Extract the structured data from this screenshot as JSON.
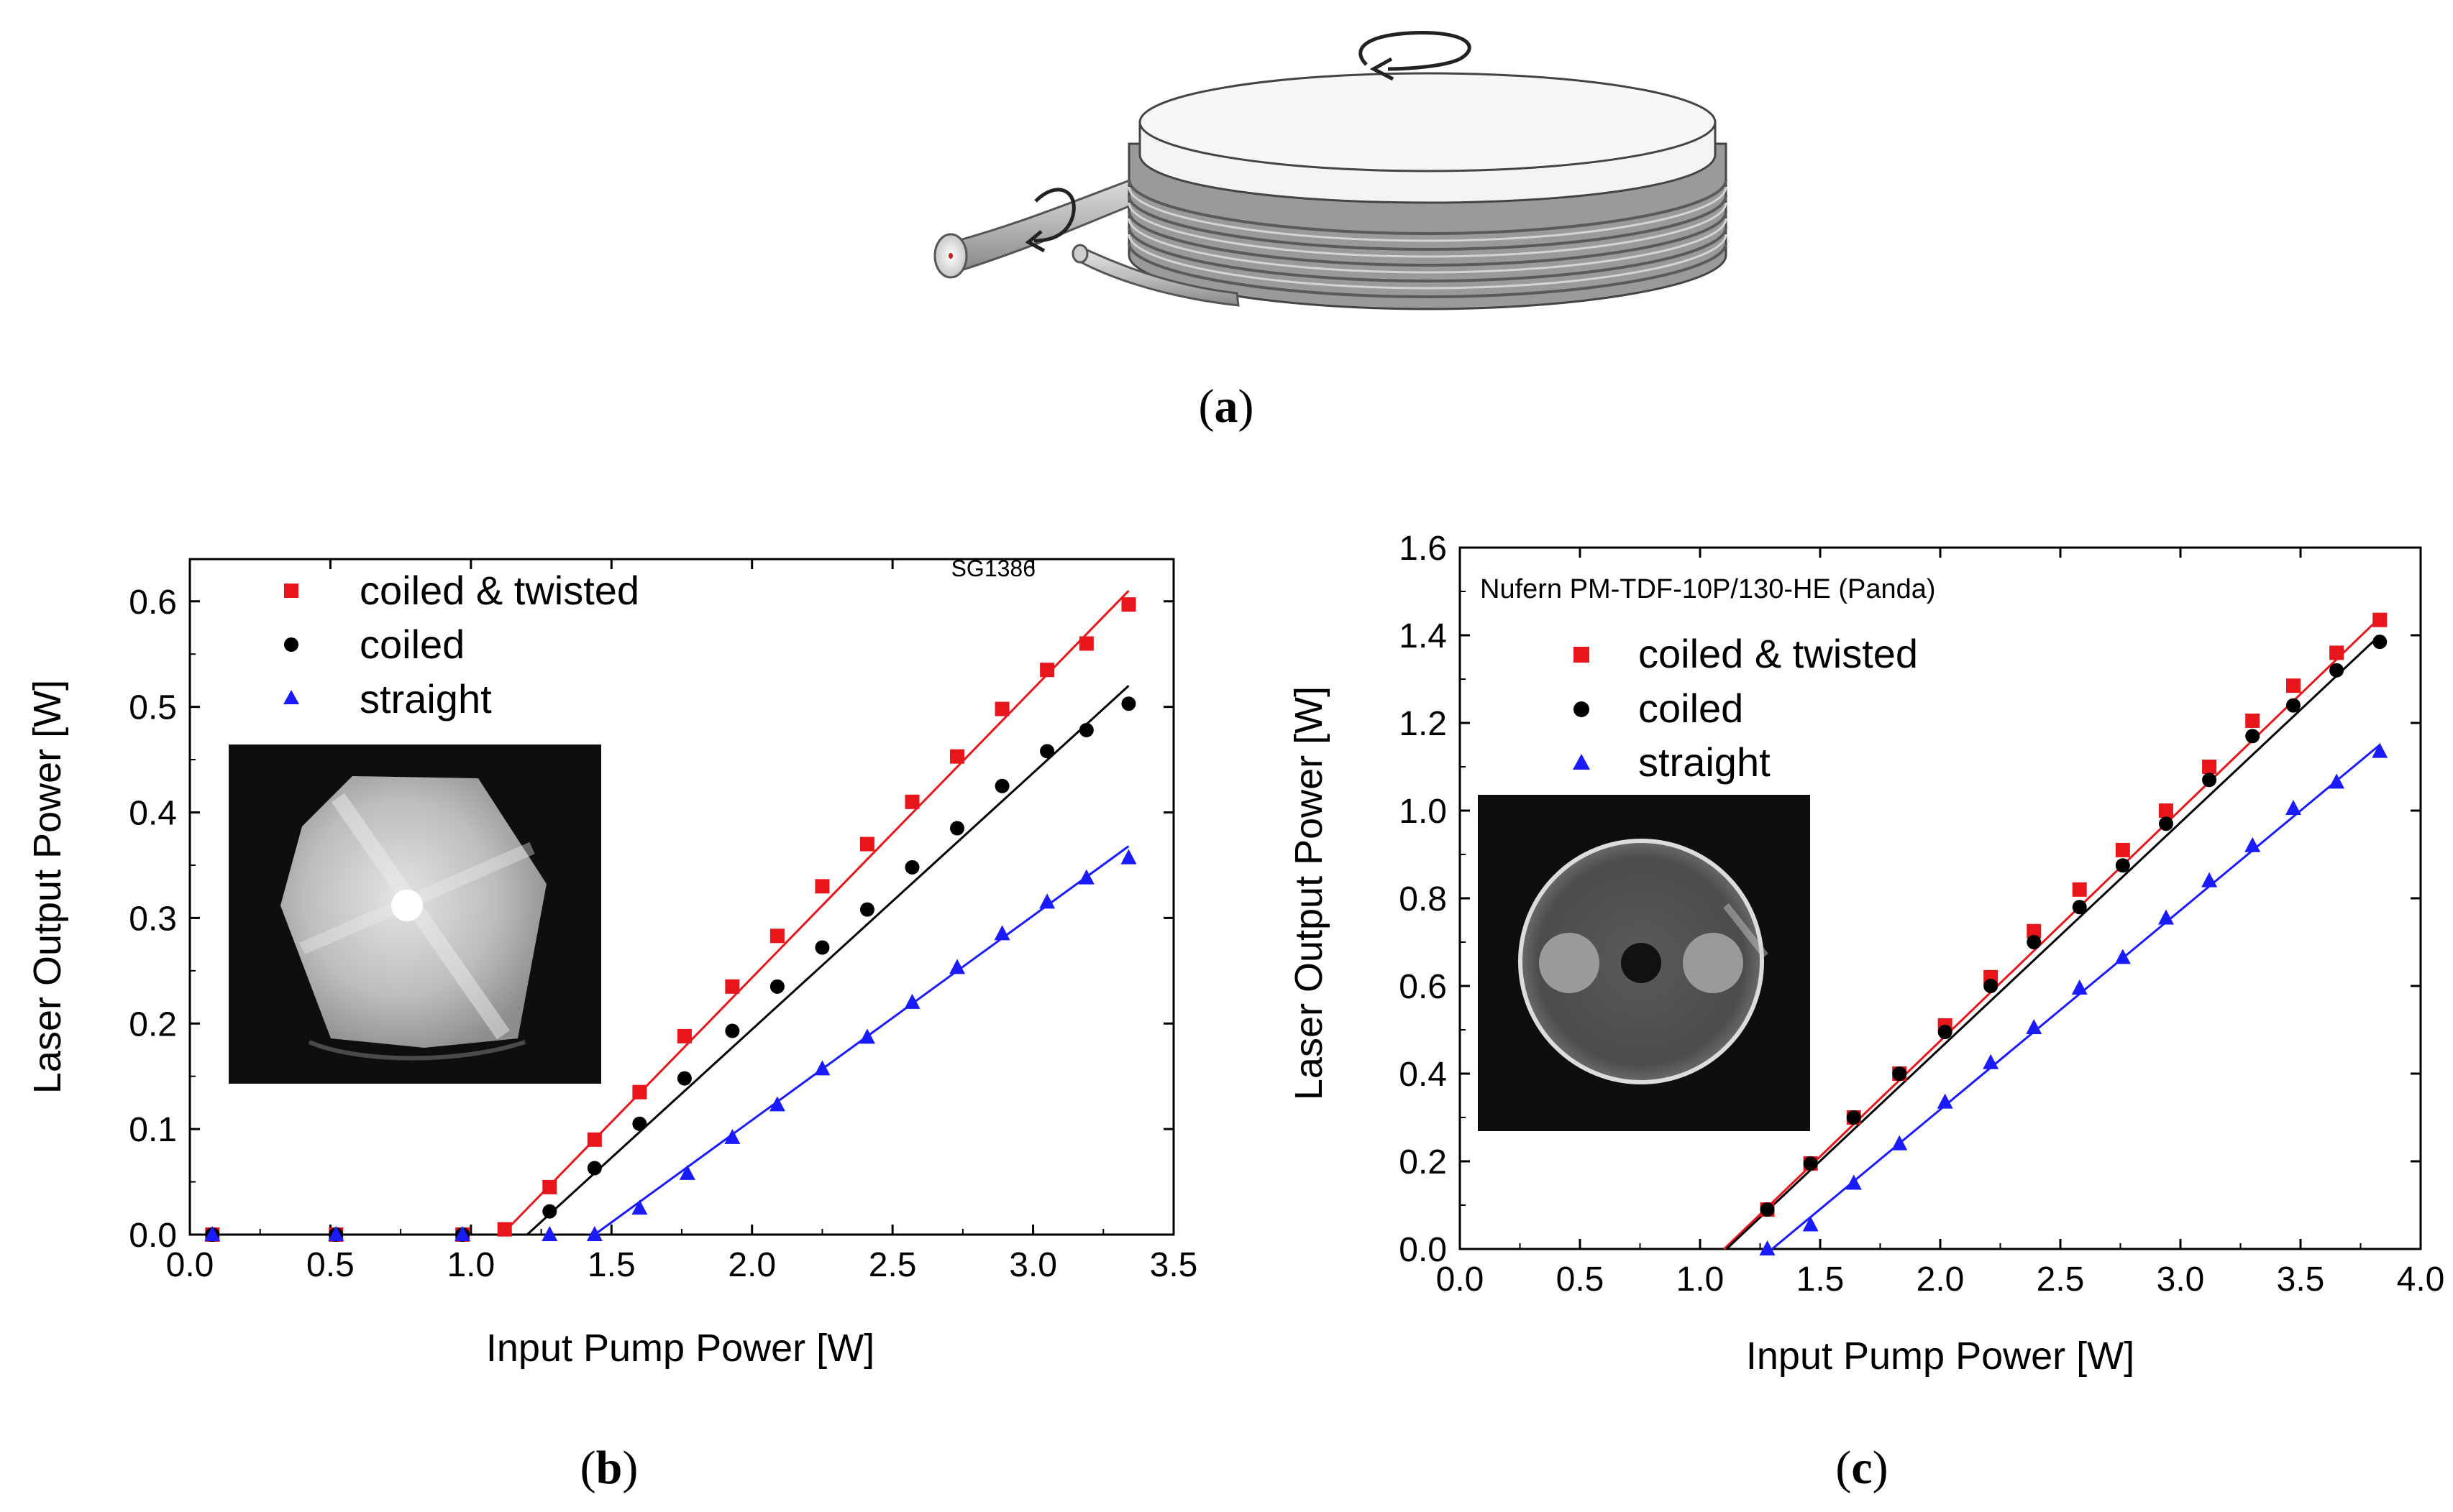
{
  "figure": {
    "panel_a_label": "a",
    "panel_b_label": "b",
    "panel_c_label": "c"
  },
  "colors": {
    "coiled_twisted": "#e8151b",
    "coiled": "#000000",
    "straight": "#1a1aff"
  },
  "chart_data": [
    {
      "id": "b",
      "type": "scatter",
      "title": "",
      "annotation": "SG1386",
      "xlabel": "Input Pump Power [W]",
      "ylabel": "Laser Output Power [W]",
      "xlim": [
        0.0,
        3.5
      ],
      "ylim": [
        0.0,
        0.64
      ],
      "xticks": [
        "0.0",
        "0.5",
        "1.0",
        "1.5",
        "2.0",
        "2.5",
        "3.0",
        "3.5"
      ],
      "yticks": [
        "0.0",
        "0.1",
        "0.2",
        "0.3",
        "0.4",
        "0.5",
        "0.6"
      ],
      "legend": [
        "coiled & twisted",
        "coiled",
        "straight"
      ],
      "series": [
        {
          "name": "coiled & twisted",
          "marker": "square",
          "x": [
            0.08,
            0.52,
            0.97,
            1.12,
            1.28,
            1.44,
            1.6,
            1.76,
            1.93,
            2.09,
            2.25,
            2.41,
            2.57,
            2.73,
            2.89,
            3.05,
            3.19,
            3.34
          ],
          "y": [
            0.0,
            0.0,
            0.0,
            0.005,
            0.045,
            0.09,
            0.135,
            0.188,
            0.235,
            0.283,
            0.33,
            0.37,
            0.41,
            0.453,
            0.498,
            0.535,
            0.56,
            0.597
          ],
          "fit": [
            [
              1.11,
              0.0
            ],
            [
              3.34,
              0.61
            ]
          ]
        },
        {
          "name": "coiled",
          "marker": "circle",
          "x": [
            0.08,
            0.52,
            0.97,
            1.28,
            1.44,
            1.6,
            1.76,
            1.93,
            2.09,
            2.25,
            2.41,
            2.57,
            2.73,
            2.89,
            3.05,
            3.19,
            3.34
          ],
          "y": [
            0.0,
            0.0,
            0.0,
            0.022,
            0.063,
            0.105,
            0.148,
            0.193,
            0.235,
            0.272,
            0.308,
            0.348,
            0.385,
            0.425,
            0.458,
            0.478,
            0.503
          ],
          "fit": [
            [
              1.2,
              0.0
            ],
            [
              3.34,
              0.52
            ]
          ]
        },
        {
          "name": "straight",
          "marker": "triangle",
          "x": [
            0.08,
            0.52,
            0.97,
            1.28,
            1.44,
            1.6,
            1.77,
            1.93,
            2.09,
            2.25,
            2.41,
            2.57,
            2.73,
            2.89,
            3.05,
            3.19,
            3.34
          ],
          "y": [
            0.0,
            0.0,
            0.0,
            0.0,
            0.0,
            0.025,
            0.058,
            0.092,
            0.123,
            0.157,
            0.187,
            0.22,
            0.253,
            0.285,
            0.315,
            0.338,
            0.357
          ],
          "fit": [
            [
              1.44,
              0.0
            ],
            [
              3.34,
              0.368
            ]
          ]
        }
      ]
    },
    {
      "id": "c",
      "type": "scatter",
      "title": "",
      "annotation": "Nufern PM-TDF-10P/130-HE (Panda)",
      "xlabel": "Input Pump Power [W]",
      "ylabel": "Laser Output Power [W]",
      "xlim": [
        0.0,
        4.0
      ],
      "ylim": [
        0.0,
        1.6
      ],
      "xticks": [
        "0.0",
        "0.5",
        "1.0",
        "1.5",
        "2.0",
        "2.5",
        "3.0",
        "3.5",
        "4.0"
      ],
      "yticks": [
        "0.0",
        "0.2",
        "0.4",
        "0.6",
        "0.8",
        "1.0",
        "1.2",
        "1.4",
        "1.6"
      ],
      "legend": [
        "coiled & twisted",
        "coiled",
        "straight"
      ],
      "series": [
        {
          "name": "coiled & twisted",
          "marker": "square",
          "x": [
            1.28,
            1.46,
            1.64,
            1.83,
            2.02,
            2.21,
            2.39,
            2.58,
            2.76,
            2.94,
            3.12,
            3.3,
            3.47,
            3.65,
            3.83
          ],
          "y": [
            0.09,
            0.195,
            0.3,
            0.4,
            0.51,
            0.62,
            0.725,
            0.82,
            0.91,
            1.0,
            1.1,
            1.205,
            1.285,
            1.36,
            1.435
          ],
          "fit": [
            [
              1.1,
              0.0
            ],
            [
              3.83,
              1.44
            ]
          ]
        },
        {
          "name": "coiled",
          "marker": "circle",
          "x": [
            1.28,
            1.46,
            1.64,
            1.83,
            2.02,
            2.21,
            2.39,
            2.58,
            2.76,
            2.94,
            3.12,
            3.3,
            3.47,
            3.65,
            3.83
          ],
          "y": [
            0.09,
            0.195,
            0.3,
            0.4,
            0.495,
            0.6,
            0.7,
            0.78,
            0.875,
            0.97,
            1.07,
            1.17,
            1.24,
            1.32,
            1.385
          ],
          "fit": [
            [
              1.11,
              0.0
            ],
            [
              3.83,
              1.4
            ]
          ]
        },
        {
          "name": "straight",
          "marker": "triangle",
          "x": [
            1.28,
            1.46,
            1.64,
            1.83,
            2.02,
            2.21,
            2.39,
            2.58,
            2.76,
            2.94,
            3.12,
            3.3,
            3.47,
            3.65,
            3.83
          ],
          "y": [
            0.0,
            0.055,
            0.15,
            0.24,
            0.335,
            0.425,
            0.505,
            0.595,
            0.665,
            0.755,
            0.84,
            0.92,
            1.005,
            1.065,
            1.135
          ],
          "fit": [
            [
              1.3,
              0.0
            ],
            [
              3.83,
              1.15
            ]
          ]
        }
      ]
    }
  ]
}
